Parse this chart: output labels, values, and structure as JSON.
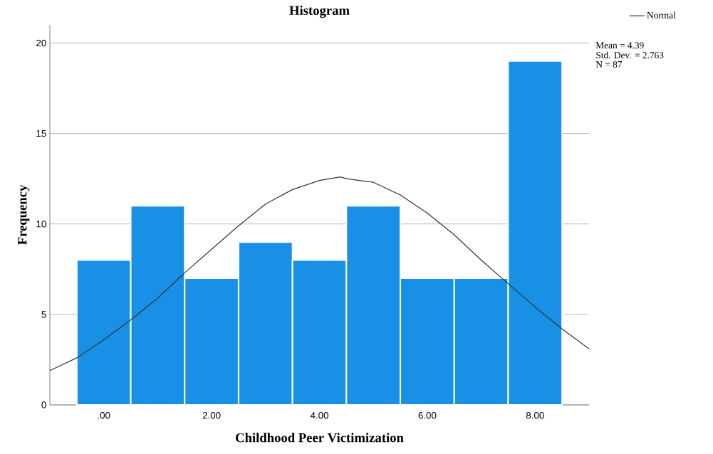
{
  "chart_data": {
    "type": "histogram",
    "title": "Histogram",
    "xlabel": "Childhood Peer Victimization",
    "ylabel": "Frequency",
    "bins": [
      -0.5,
      0.5,
      1.5,
      2.5,
      3.5,
      4.5,
      5.5,
      6.5,
      7.5,
      8.5
    ],
    "values": [
      8,
      11,
      7,
      9,
      8,
      11,
      7,
      7,
      19
    ],
    "color": "#1790e5",
    "series": [
      {
        "type": "line",
        "name": "Normal",
        "color": "#333333",
        "x": [
          -1,
          -0.5,
          0,
          0.5,
          1,
          1.5,
          2,
          2.5,
          3,
          3.5,
          4,
          4.39,
          4.5,
          5,
          5.5,
          6,
          6.5,
          7,
          7.5,
          8,
          8.5,
          9
        ],
        "values": [
          1.9,
          2.6,
          3.6,
          4.7,
          5.9,
          7.3,
          8.6,
          9.9,
          11.1,
          11.9,
          12.4,
          12.6,
          12.5,
          12.3,
          11.6,
          10.6,
          9.4,
          8.0,
          6.7,
          5.4,
          4.2,
          3.1
        ]
      }
    ],
    "xlim": [
      -1,
      9
    ],
    "xticks": [
      {
        "value": 0,
        "label": ".00"
      },
      {
        "value": 2,
        "label": "2.00"
      },
      {
        "value": 4,
        "label": "4.00"
      },
      {
        "value": 6,
        "label": "6.00"
      },
      {
        "value": 8,
        "label": "8.00"
      }
    ],
    "ylim": [
      0,
      21
    ],
    "yticks": [
      0,
      5,
      10,
      15,
      20
    ],
    "grid": "y",
    "legend": "top right",
    "annotations": [
      "Mean = 4.39",
      "Std. Dev. = 2.763",
      "N = 87"
    ]
  }
}
